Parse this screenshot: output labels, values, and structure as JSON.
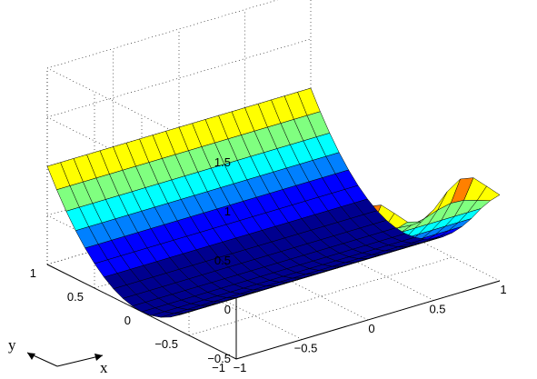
{
  "chart_data": {
    "type": "surface",
    "title": "",
    "view": "3-D perspective, axis box with dotted grid",
    "x": [
      -1,
      -0.9,
      -0.8,
      -0.7,
      -0.6,
      -0.5,
      -0.4,
      -0.3,
      -0.2,
      -0.1,
      0,
      0.1,
      0.2,
      0.3,
      0.4,
      0.5,
      0.6,
      0.7,
      0.8,
      0.9,
      1
    ],
    "y": [
      -1,
      -0.9,
      -0.8,
      -0.7,
      -0.6,
      -0.5,
      -0.4,
      -0.3,
      -0.2,
      -0.1,
      0,
      0.1,
      0.2,
      0.3,
      0.4,
      0.5,
      0.6,
      0.7,
      0.8,
      0.9,
      1
    ],
    "z_function": "z = y^2 - 0.5, with small ripples along the y = -1 edge (z ~ 1.0 to 1.4)",
    "xlim": [
      -1,
      1
    ],
    "ylim": [
      -1,
      1
    ],
    "zlim": [
      -0.5,
      1.5
    ],
    "x_ticks": [
      "−1",
      "−0.5",
      "0",
      "0.5",
      "1"
    ],
    "y_ticks": [
      "−1",
      "−0.5",
      "0",
      "0.5",
      "1"
    ],
    "z_ticks": [
      "−0.5",
      "0",
      "0.5",
      "1",
      "1.5"
    ],
    "grid": true,
    "colormap": [
      "#00008f",
      "#0000ff",
      "#0080ff",
      "#00ffff",
      "#80ff80",
      "#ffff00",
      "#ff8000",
      "#ff0000",
      "#800000"
    ],
    "orientation_labels": {
      "x": "x",
      "y": "y"
    }
  }
}
